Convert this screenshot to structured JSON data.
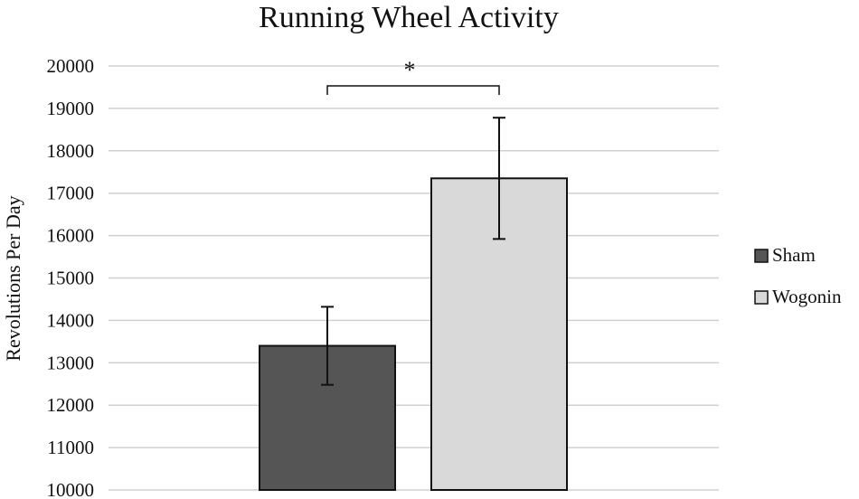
{
  "chart_data": {
    "type": "bar",
    "title": "Running Wheel Activity",
    "ylabel": "Revolutions Per Day",
    "xlabel": "",
    "ylim": [
      10000,
      20000
    ],
    "yticks": [
      10000,
      11000,
      12000,
      13000,
      14000,
      15000,
      16000,
      17000,
      18000,
      19000,
      20000
    ],
    "grid": true,
    "legend": "right",
    "series": [
      {
        "name": "Sham",
        "value": 13400,
        "error_low": 12480,
        "error_high": 14320,
        "color": "#555555"
      },
      {
        "name": "Wogonin",
        "value": 17350,
        "error_low": 15920,
        "error_high": 18780,
        "color": "#d9d9d9"
      }
    ],
    "annotation": {
      "text": "*",
      "between": [
        "Sham",
        "Wogonin"
      ]
    }
  }
}
